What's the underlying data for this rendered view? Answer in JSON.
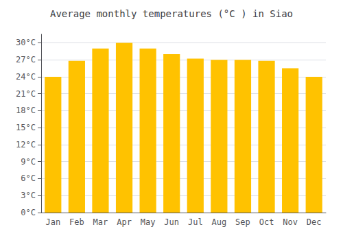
{
  "chart_data": {
    "type": "bar",
    "title": "Average monthly temperatures (°C ) in Siao",
    "categories": [
      "Jan",
      "Feb",
      "Mar",
      "Apr",
      "May",
      "Jun",
      "Jul",
      "Aug",
      "Sep",
      "Oct",
      "Nov",
      "Dec"
    ],
    "values": [
      24,
      26.8,
      29,
      30,
      29,
      28,
      27.2,
      27,
      27,
      26.8,
      25.5,
      24
    ],
    "color": "#FFC200",
    "ylim": [
      0,
      31.5
    ],
    "yticks": [
      {
        "value": 0,
        "label": "0°C"
      },
      {
        "value": 3,
        "label": "3°C"
      },
      {
        "value": 6,
        "label": "6°C"
      },
      {
        "value": 9,
        "label": "9°C"
      },
      {
        "value": 12,
        "label": "12°C"
      },
      {
        "value": 15,
        "label": "15°C"
      },
      {
        "value": 18,
        "label": "18°C"
      },
      {
        "value": 21,
        "label": "21°C"
      },
      {
        "value": 24,
        "label": "24°C"
      },
      {
        "value": 27,
        "label": "27°C"
      },
      {
        "value": 30,
        "label": "30°C"
      }
    ],
    "grid": true
  }
}
